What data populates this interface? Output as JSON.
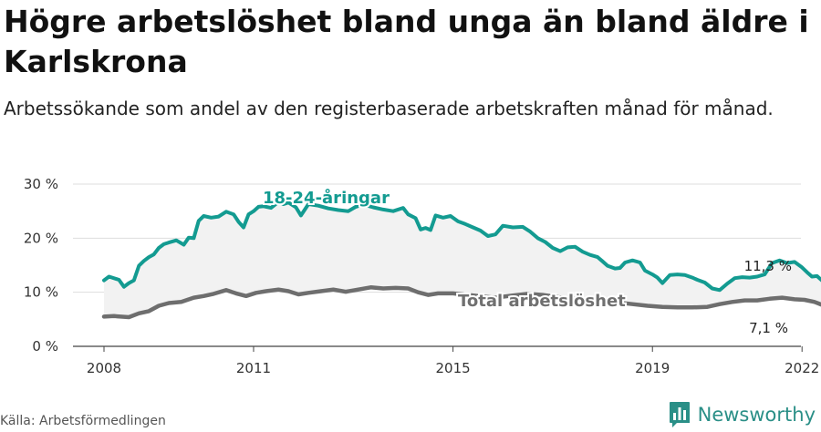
{
  "title": "Högre arbetslöshet bland unga än bland äldre i Karlskrona",
  "subtitle": "Arbetssökande som andel av den registerbaserade arbetskraften månad för månad.",
  "source": "Källa: Arbetsförmedlingen",
  "brand": "Newsworthy",
  "colors": {
    "youth": "#139b91",
    "total": "#6e6e6e",
    "fill": "#f2f2f2",
    "grid": "#dddddd",
    "brand": "#2a8f87"
  },
  "chart_data": {
    "type": "line",
    "xlim": [
      2008,
      2022.6
    ],
    "ylim": [
      0,
      30
    ],
    "x_ticks": [
      {
        "value": 2008,
        "label": "2008"
      },
      {
        "value": 2011,
        "label": "2011"
      },
      {
        "value": 2015,
        "label": "2015"
      },
      {
        "value": 2019,
        "label": "2019"
      },
      {
        "value": 2022,
        "label": "2022"
      }
    ],
    "y_ticks": [
      {
        "value": 0,
        "label": "0 %"
      },
      {
        "value": 10,
        "label": "10 %"
      },
      {
        "value": 20,
        "label": "20 %"
      },
      {
        "value": 30,
        "label": "30 %"
      }
    ],
    "grid": true,
    "legend": "none",
    "series": [
      {
        "name": "18-24-åringar",
        "end_label": "11,3 %",
        "points": [
          [
            2008.0,
            12.2
          ],
          [
            2008.1,
            12.9
          ],
          [
            2008.3,
            12.3
          ],
          [
            2008.4,
            11.0
          ],
          [
            2008.5,
            11.7
          ],
          [
            2008.6,
            12.2
          ],
          [
            2008.7,
            14.9
          ],
          [
            2008.8,
            15.8
          ],
          [
            2008.9,
            16.5
          ],
          [
            2009.0,
            17.0
          ],
          [
            2009.1,
            18.2
          ],
          [
            2009.2,
            18.9
          ],
          [
            2009.3,
            19.2
          ],
          [
            2009.45,
            19.6
          ],
          [
            2009.6,
            18.8
          ],
          [
            2009.7,
            20.1
          ],
          [
            2009.8,
            20.0
          ],
          [
            2009.9,
            23.2
          ],
          [
            2010.0,
            24.1
          ],
          [
            2010.15,
            23.8
          ],
          [
            2010.3,
            24.0
          ],
          [
            2010.45,
            24.9
          ],
          [
            2010.6,
            24.4
          ],
          [
            2010.7,
            23.0
          ],
          [
            2010.8,
            22.0
          ],
          [
            2010.9,
            24.4
          ],
          [
            2011.0,
            25.0
          ],
          [
            2011.1,
            25.8
          ],
          [
            2011.2,
            25.9
          ],
          [
            2011.35,
            25.6
          ],
          [
            2011.5,
            26.7
          ],
          [
            2011.6,
            26.3
          ],
          [
            2011.7,
            26.6
          ],
          [
            2011.85,
            25.7
          ],
          [
            2011.95,
            24.2
          ],
          [
            2012.1,
            26.3
          ],
          [
            2012.3,
            26.0
          ],
          [
            2012.5,
            25.5
          ],
          [
            2012.7,
            25.2
          ],
          [
            2012.9,
            25.0
          ],
          [
            2013.05,
            25.8
          ],
          [
            2013.2,
            26.2
          ],
          [
            2013.4,
            25.7
          ],
          [
            2013.6,
            25.3
          ],
          [
            2013.8,
            25.0
          ],
          [
            2014.0,
            25.6
          ],
          [
            2014.1,
            24.4
          ],
          [
            2014.25,
            23.7
          ],
          [
            2014.35,
            21.6
          ],
          [
            2014.45,
            21.9
          ],
          [
            2014.55,
            21.5
          ],
          [
            2014.65,
            24.2
          ],
          [
            2014.8,
            23.8
          ],
          [
            2014.95,
            24.1
          ],
          [
            2015.1,
            23.1
          ],
          [
            2015.25,
            22.6
          ],
          [
            2015.4,
            22.0
          ],
          [
            2015.55,
            21.4
          ],
          [
            2015.7,
            20.4
          ],
          [
            2015.85,
            20.7
          ],
          [
            2016.0,
            22.3
          ],
          [
            2016.2,
            22.0
          ],
          [
            2016.4,
            22.1
          ],
          [
            2016.55,
            21.2
          ],
          [
            2016.7,
            20.0
          ],
          [
            2016.85,
            19.3
          ],
          [
            2017.0,
            18.2
          ],
          [
            2017.15,
            17.6
          ],
          [
            2017.3,
            18.3
          ],
          [
            2017.45,
            18.4
          ],
          [
            2017.6,
            17.5
          ],
          [
            2017.75,
            16.9
          ],
          [
            2017.9,
            16.5
          ],
          [
            2018.0,
            15.7
          ],
          [
            2018.1,
            14.9
          ],
          [
            2018.25,
            14.4
          ],
          [
            2018.35,
            14.5
          ],
          [
            2018.45,
            15.5
          ],
          [
            2018.6,
            15.9
          ],
          [
            2018.75,
            15.5
          ],
          [
            2018.85,
            14.0
          ],
          [
            2019.0,
            13.3
          ],
          [
            2019.1,
            12.7
          ],
          [
            2019.2,
            11.7
          ],
          [
            2019.35,
            13.2
          ],
          [
            2019.5,
            13.3
          ],
          [
            2019.65,
            13.2
          ],
          [
            2019.8,
            12.7
          ],
          [
            2019.9,
            12.3
          ],
          [
            2020.05,
            11.8
          ],
          [
            2020.2,
            10.7
          ],
          [
            2020.35,
            10.4
          ],
          [
            2020.5,
            11.6
          ],
          [
            2020.65,
            12.6
          ],
          [
            2020.8,
            12.8
          ],
          [
            2020.95,
            12.7
          ],
          [
            2021.1,
            12.9
          ],
          [
            2021.25,
            13.3
          ],
          [
            2021.4,
            15.4
          ],
          [
            2021.55,
            15.9
          ],
          [
            2021.7,
            15.4
          ],
          [
            2021.85,
            15.6
          ],
          [
            2022.0,
            14.6
          ],
          [
            2022.1,
            13.7
          ],
          [
            2022.2,
            12.9
          ],
          [
            2022.3,
            13.0
          ],
          [
            2022.42,
            12.0
          ],
          [
            2022.5,
            11.6
          ],
          [
            2022.57,
            11.3
          ]
        ]
      },
      {
        "name": "Total arbetslöshet",
        "end_label": "7,1 %",
        "points": [
          [
            2008.0,
            5.5
          ],
          [
            2008.2,
            5.6
          ],
          [
            2008.5,
            5.4
          ],
          [
            2008.7,
            6.1
          ],
          [
            2008.9,
            6.5
          ],
          [
            2009.1,
            7.5
          ],
          [
            2009.3,
            8.0
          ],
          [
            2009.55,
            8.2
          ],
          [
            2009.8,
            9.0
          ],
          [
            2010.0,
            9.3
          ],
          [
            2010.2,
            9.7
          ],
          [
            2010.45,
            10.4
          ],
          [
            2010.65,
            9.8
          ],
          [
            2010.85,
            9.3
          ],
          [
            2011.05,
            9.9
          ],
          [
            2011.25,
            10.2
          ],
          [
            2011.5,
            10.5
          ],
          [
            2011.7,
            10.2
          ],
          [
            2011.9,
            9.6
          ],
          [
            2012.1,
            9.9
          ],
          [
            2012.35,
            10.2
          ],
          [
            2012.6,
            10.5
          ],
          [
            2012.85,
            10.1
          ],
          [
            2013.1,
            10.5
          ],
          [
            2013.35,
            10.9
          ],
          [
            2013.6,
            10.7
          ],
          [
            2013.85,
            10.8
          ],
          [
            2014.1,
            10.7
          ],
          [
            2014.3,
            10.0
          ],
          [
            2014.5,
            9.5
          ],
          [
            2014.7,
            9.8
          ],
          [
            2015.0,
            9.8
          ],
          [
            2015.3,
            9.5
          ],
          [
            2015.6,
            9.2
          ],
          [
            2015.85,
            9.0
          ],
          [
            2016.2,
            9.4
          ],
          [
            2016.5,
            9.7
          ],
          [
            2016.8,
            9.5
          ],
          [
            2017.1,
            9.1
          ],
          [
            2017.4,
            8.8
          ],
          [
            2017.7,
            8.6
          ],
          [
            2018.0,
            8.4
          ],
          [
            2018.3,
            8.1
          ],
          [
            2018.6,
            7.8
          ],
          [
            2018.9,
            7.5
          ],
          [
            2019.2,
            7.3
          ],
          [
            2019.5,
            7.2
          ],
          [
            2019.8,
            7.2
          ],
          [
            2020.1,
            7.3
          ],
          [
            2020.35,
            7.8
          ],
          [
            2020.6,
            8.2
          ],
          [
            2020.85,
            8.5
          ],
          [
            2021.1,
            8.5
          ],
          [
            2021.35,
            8.8
          ],
          [
            2021.6,
            9.0
          ],
          [
            2021.85,
            8.7
          ],
          [
            2022.05,
            8.6
          ],
          [
            2022.25,
            8.2
          ],
          [
            2022.45,
            7.5
          ],
          [
            2022.57,
            7.1
          ]
        ]
      }
    ]
  }
}
